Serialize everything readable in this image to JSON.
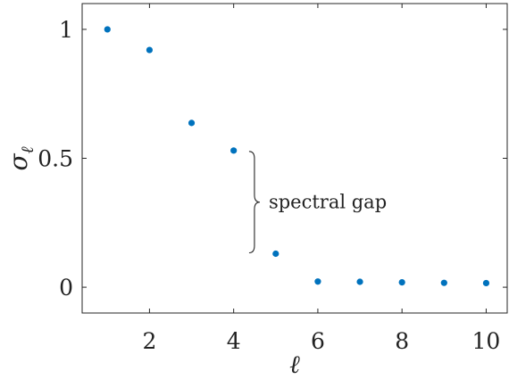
{
  "chart_data": {
    "type": "scatter",
    "title": "",
    "xlabel": "ℓ",
    "ylabel": "σ",
    "ylabel_subscript": "ℓ",
    "xlim": [
      0.4,
      10.5
    ],
    "ylim": [
      -0.1,
      1.1
    ],
    "x_ticks": [
      2,
      4,
      6,
      8,
      10
    ],
    "y_ticks": [
      0,
      0.5,
      1
    ],
    "x_tick_labels": [
      "2",
      "4",
      "6",
      "8",
      "10"
    ],
    "y_tick_labels": [
      "0",
      "0.5",
      "1"
    ],
    "grid": false,
    "marker_color": "#0072BD",
    "series": [
      {
        "x": [
          1,
          2,
          3,
          4,
          5,
          6,
          7,
          8,
          9,
          10
        ],
        "y": [
          1.0,
          0.92,
          0.637,
          0.53,
          0.13,
          0.022,
          0.021,
          0.019,
          0.017,
          0.016
        ]
      }
    ],
    "annotations": [
      {
        "text": "spectral gap",
        "x": 4.6,
        "y_from": 0.13,
        "y_to": 0.53
      }
    ]
  }
}
